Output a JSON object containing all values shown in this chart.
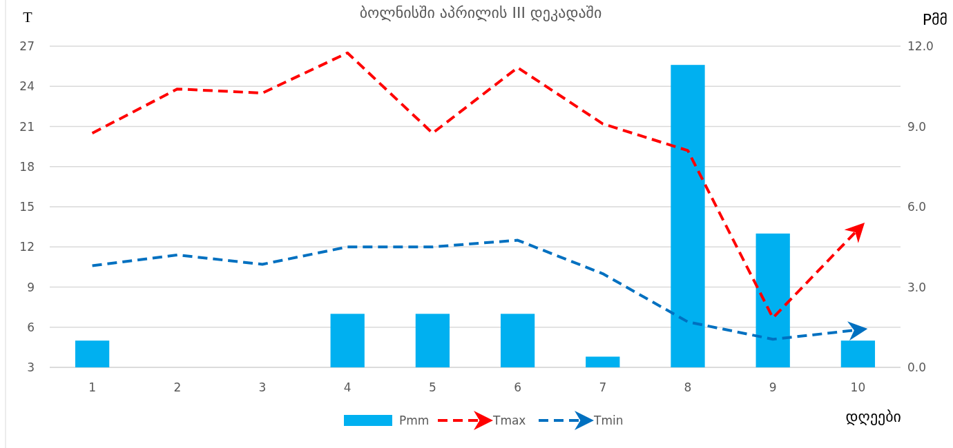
{
  "chart_data": {
    "type": "bar",
    "title": "ბოლნისში აპრილის III დეკადაში",
    "ylabel": "T",
    "y2label": "Pმმ",
    "xlabel": "დღეები",
    "categories": [
      "1",
      "2",
      "3",
      "4",
      "5",
      "6",
      "7",
      "8",
      "9",
      "10"
    ],
    "series": [
      {
        "name": "Pmm",
        "axis": "y2",
        "color": "#00b0f0",
        "values": [
          1.0,
          0,
          0,
          2.0,
          2.0,
          2.0,
          0.4,
          11.3,
          5.0,
          1.0
        ]
      },
      {
        "name": "Tmax",
        "type": "line",
        "color": "#ff0000",
        "line_style": "dashed",
        "values": [
          20.5,
          23.8,
          23.5,
          26.5,
          20.5,
          25.4,
          21.2,
          19.2,
          6.7,
          13.3
        ]
      },
      {
        "name": "Tmin",
        "type": "line",
        "color": "#0070c0",
        "line_style": "dashed",
        "values": [
          10.6,
          11.4,
          10.7,
          12.0,
          12.0,
          12.5,
          10.0,
          6.4,
          5.1,
          5.8
        ]
      }
    ],
    "ylim": [
      3,
      27
    ],
    "yticks": [
      3,
      6,
      9,
      12,
      15,
      18,
      21,
      24,
      27
    ],
    "y2lim": [
      0,
      12
    ],
    "y2ticks": [
      {
        "value": 0,
        "label": "0.0"
      },
      {
        "value": 3,
        "label": "3.0"
      },
      {
        "value": 6,
        "label": "6.0"
      },
      {
        "value": 9,
        "label": "9.0"
      },
      {
        "value": 12,
        "label": "12.0"
      }
    ],
    "grid": "y",
    "legend": "bottom"
  }
}
